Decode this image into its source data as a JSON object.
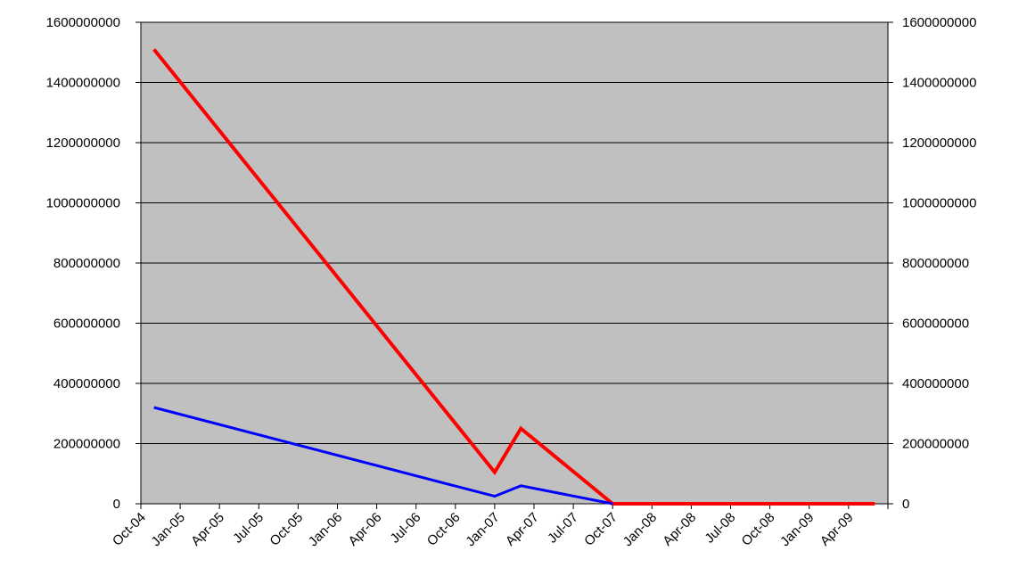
{
  "chart_data": {
    "type": "line",
    "title": "",
    "xlabel": "",
    "ylabel": "",
    "categories": [
      "Oct-04",
      "Jan-05",
      "Apr-05",
      "Jul-05",
      "Oct-05",
      "Jan-06",
      "Apr-06",
      "Jul-06",
      "Oct-06",
      "Jan-07",
      "Apr-07",
      "Jul-07",
      "Oct-07",
      "Jan-08",
      "Apr-08",
      "Jul-08",
      "Oct-08",
      "Jan-09",
      "Apr-09"
    ],
    "ylim": [
      0,
      1600000000
    ],
    "y_ticks": [
      "0",
      "200000000",
      "400000000",
      "600000000",
      "800000000",
      "1000000000",
      "1200000000",
      "1400000000",
      "1600000000"
    ],
    "y_ticks_right": [
      "0",
      "200000000",
      "400000000",
      "600000000",
      "800000000",
      "1000000000",
      "1200000000",
      "1400000000",
      "1600000000"
    ],
    "grid": true,
    "plot_background": "#c0c0c0",
    "series": [
      {
        "color": "#ff0000",
        "points": [
          {
            "x": "2004-11",
            "y": 1510000000
          },
          {
            "x": "2007-01",
            "y": 105000000
          },
          {
            "x": "2007-03",
            "y": 250000000
          },
          {
            "x": "2007-10",
            "y": 0
          },
          {
            "x": "2009-06",
            "y": 0
          }
        ]
      },
      {
        "color": "#0000ff",
        "points": [
          {
            "x": "2004-11",
            "y": 320000000
          },
          {
            "x": "2007-01",
            "y": 25000000
          },
          {
            "x": "2007-03",
            "y": 60000000
          },
          {
            "x": "2007-10",
            "y": 0
          }
        ]
      }
    ]
  }
}
